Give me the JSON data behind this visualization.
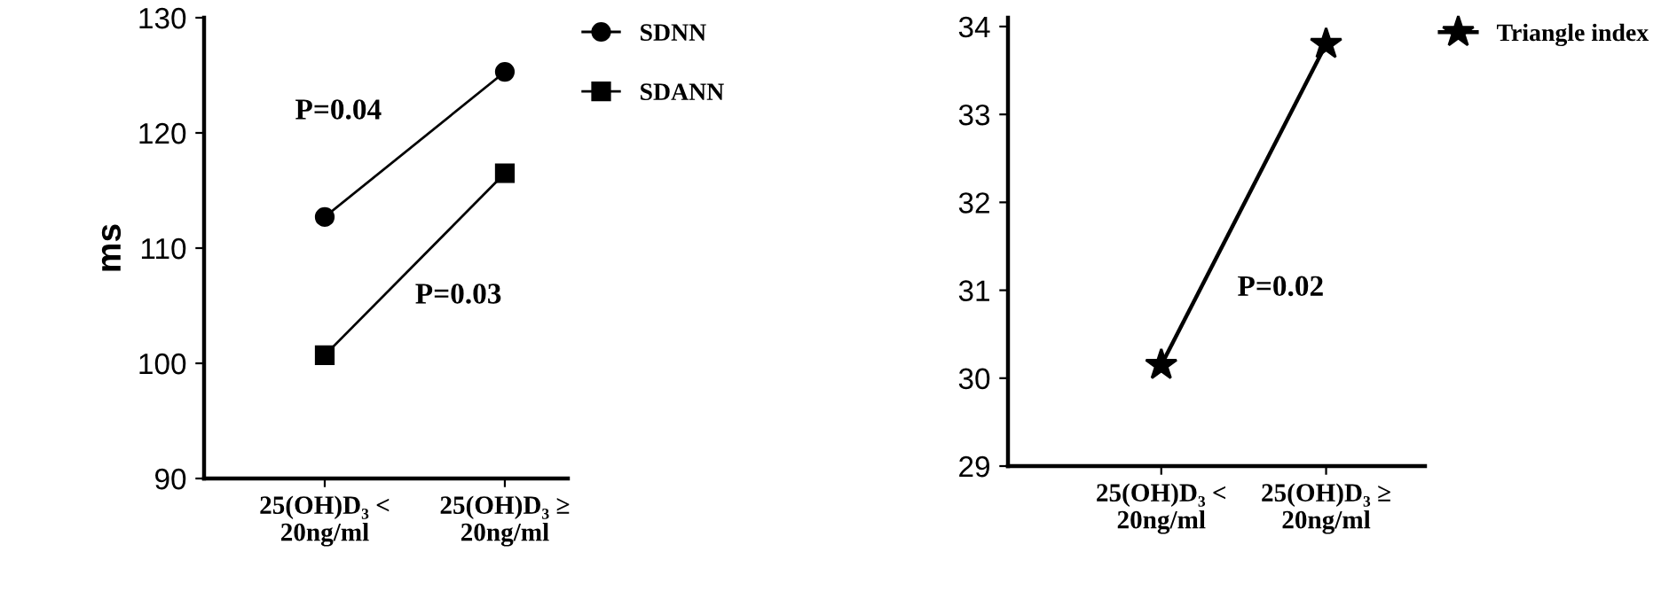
{
  "chart_data": [
    {
      "type": "line",
      "ylabel": "ms",
      "categories": [
        "25(OH)D₃ <\n20ng/ml",
        "25(OH)D₃ ≥\n20ng/ml"
      ],
      "ylim": [
        90,
        130
      ],
      "yticks": [
        90,
        100,
        110,
        120,
        130
      ],
      "legend": "top right",
      "grid": false,
      "series": [
        {
          "name": "SDNN",
          "color": "#000000",
          "marker": "circle",
          "values": [
            112.7,
            125.3
          ]
        },
        {
          "name": "SDANN",
          "color": "#000000",
          "marker": "square",
          "values": [
            100.7,
            116.5
          ]
        }
      ],
      "annotations": [
        "P=0.04",
        "P=0.03"
      ]
    },
    {
      "type": "line",
      "categories": [
        "25(OH)D₃ <\n20ng/ml",
        "25(OH)D₃ ≥\n20ng/ml"
      ],
      "ylim": [
        29,
        34.1
      ],
      "yticks": [
        29,
        30,
        31,
        32,
        33,
        34
      ],
      "legend": "top right",
      "grid": false,
      "series": [
        {
          "name": "Triangle index",
          "color": "#000000",
          "marker": "star",
          "values": [
            30.15,
            33.8
          ]
        }
      ],
      "annotations": [
        "P=0.02"
      ]
    }
  ]
}
